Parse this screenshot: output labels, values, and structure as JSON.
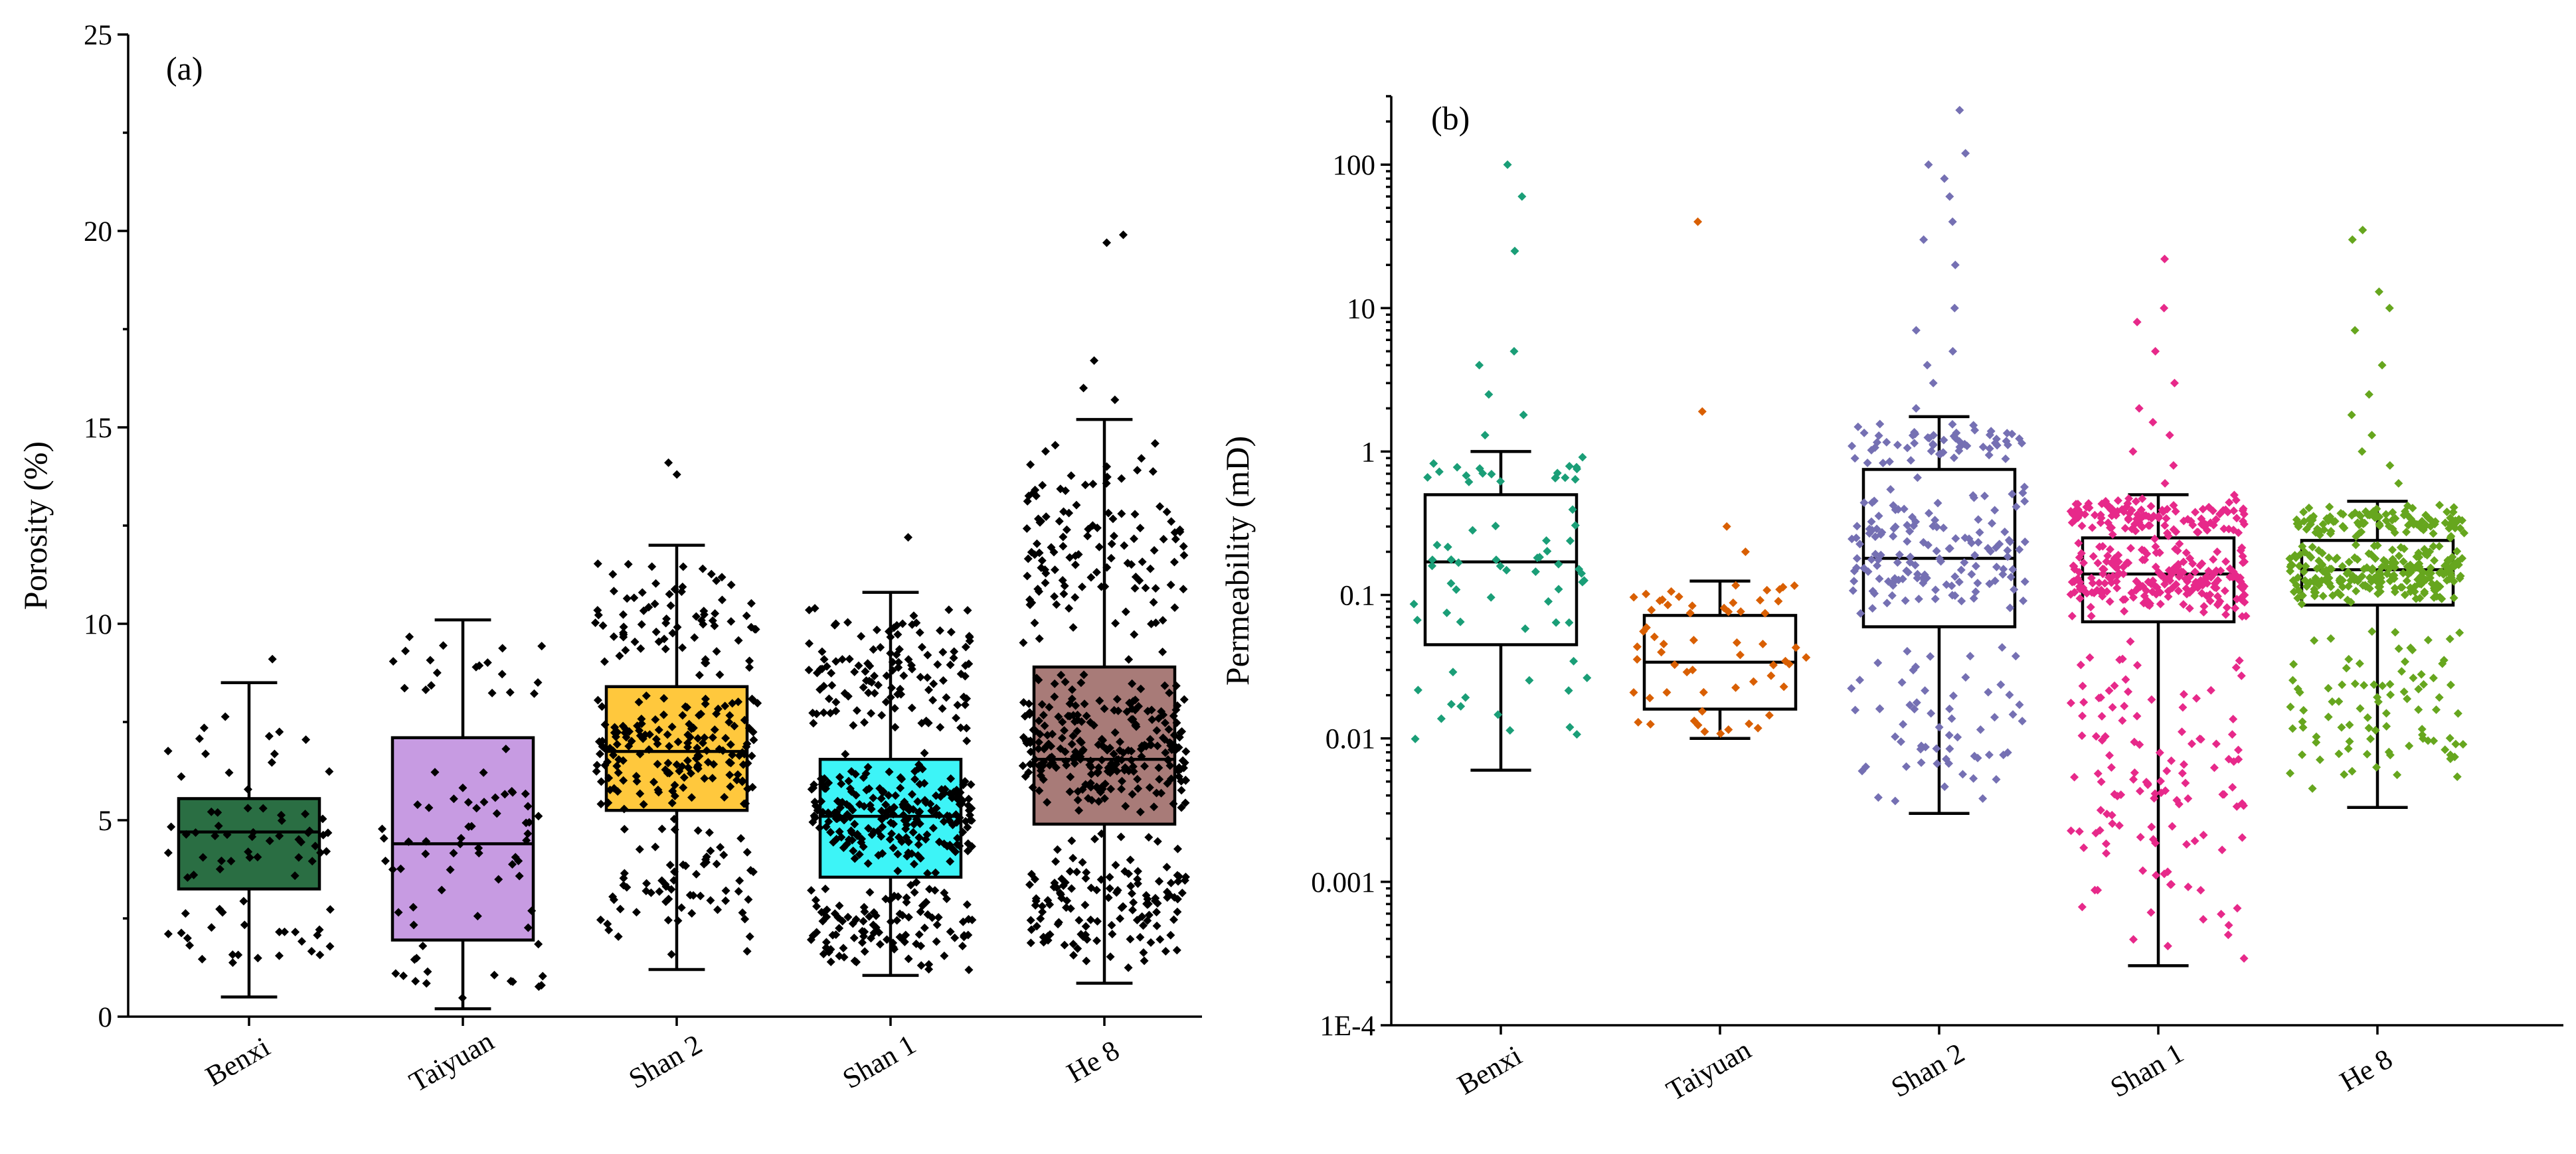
{
  "chart_data": [
    {
      "panel": "(a)",
      "type": "box",
      "ylabel": "Porosity (%)",
      "yscale": "linear",
      "ylim": [
        0,
        25
      ],
      "yticks": [
        0,
        5,
        10,
        15,
        20,
        25
      ],
      "ytick_labels": [
        "0",
        "5",
        "10",
        "15",
        "20",
        "25"
      ],
      "categories": [
        "Benxi",
        "Taiyuan",
        "Shan 2",
        "Shan 1",
        "He 8"
      ],
      "point_color": "#000000",
      "groups": [
        {
          "name": "Benxi",
          "color": "#2a6e43",
          "whisker_low": 0.5,
          "q1": 3.25,
          "median": 4.7,
          "q3": 5.55,
          "whisker_high": 8.5,
          "n_points": 80,
          "outliers": [
            9.1
          ]
        },
        {
          "name": "Taiyuan",
          "color": "#c79be2",
          "whisker_low": 0.2,
          "q1": 1.95,
          "median": 4.4,
          "q3": 7.1,
          "whisker_high": 10.1,
          "n_points": 85,
          "outliers": []
        },
        {
          "name": "Shan 2",
          "color": "#ffc83d",
          "whisker_low": 1.2,
          "q1": 5.25,
          "median": 6.75,
          "q3": 8.4,
          "whisker_high": 12.0,
          "n_points": 300,
          "outliers": [
            13.8,
            14.1
          ]
        },
        {
          "name": "Shan 1",
          "color": "#3df4f7",
          "whisker_low": 1.05,
          "q1": 3.55,
          "median": 5.1,
          "q3": 6.55,
          "whisker_high": 10.8,
          "n_points": 450,
          "outliers": [
            12.2
          ]
        },
        {
          "name": "He 8",
          "color": "#a87b78",
          "whisker_low": 0.85,
          "q1": 4.9,
          "median": 6.55,
          "q3": 8.9,
          "whisker_high": 15.2,
          "n_points": 500,
          "outliers": [
            15.7,
            16.0,
            16.7,
            19.7,
            19.9
          ]
        }
      ]
    },
    {
      "panel": "(b)",
      "type": "box",
      "ylabel": "Permeability (mD)",
      "yscale": "log",
      "ylim": [
        0.0001,
        300
      ],
      "yticks": [
        0.0001,
        0.001,
        0.01,
        0.1,
        1,
        10,
        100
      ],
      "ytick_labels": [
        "1E-4",
        "0.001",
        "0.01",
        "0.1",
        "1",
        "10",
        "100"
      ],
      "categories": [
        "Benxi",
        "Taiyuan",
        "Shan 2",
        "Shan 1",
        "He 8"
      ],
      "groups": [
        {
          "name": "Benxi",
          "color": "#1a9e77",
          "whisker_low": 0.006,
          "q1": 0.045,
          "median": 0.17,
          "q3": 0.5,
          "whisker_high": 1.0,
          "n_points": 70,
          "outliers": [
            1.3,
            1.8,
            2.5,
            4.0,
            5.0,
            25,
            60,
            100
          ]
        },
        {
          "name": "Taiyuan",
          "color": "#d95f02",
          "whisker_low": 0.01,
          "q1": 0.016,
          "median": 0.034,
          "q3": 0.072,
          "whisker_high": 0.125,
          "n_points": 60,
          "outliers": [
            0.2,
            0.3,
            1.9,
            40
          ]
        },
        {
          "name": "Shan 2",
          "color": "#7570b3",
          "whisker_low": 0.003,
          "q1": 0.06,
          "median": 0.18,
          "q3": 0.75,
          "whisker_high": 1.75,
          "n_points": 260,
          "outliers": [
            2,
            3,
            4,
            5,
            7,
            10,
            20,
            30,
            40,
            60,
            80,
            100,
            120,
            240
          ]
        },
        {
          "name": "Shan 1",
          "color": "#e7298a",
          "whisker_low": 0.00026,
          "q1": 0.065,
          "median": 0.14,
          "q3": 0.25,
          "whisker_high": 0.5,
          "n_points": 450,
          "outliers": [
            0.6,
            0.8,
            1.0,
            1.3,
            1.6,
            2.0,
            3,
            5,
            8,
            10,
            22
          ]
        },
        {
          "name": "He 8",
          "color": "#66a61e",
          "whisker_low": 0.0033,
          "q1": 0.085,
          "median": 0.15,
          "q3": 0.24,
          "whisker_high": 0.45,
          "n_points": 420,
          "outliers": [
            0.6,
            0.8,
            1.0,
            1.3,
            1.8,
            2.5,
            4,
            7,
            10,
            13,
            30,
            35
          ]
        }
      ]
    }
  ]
}
